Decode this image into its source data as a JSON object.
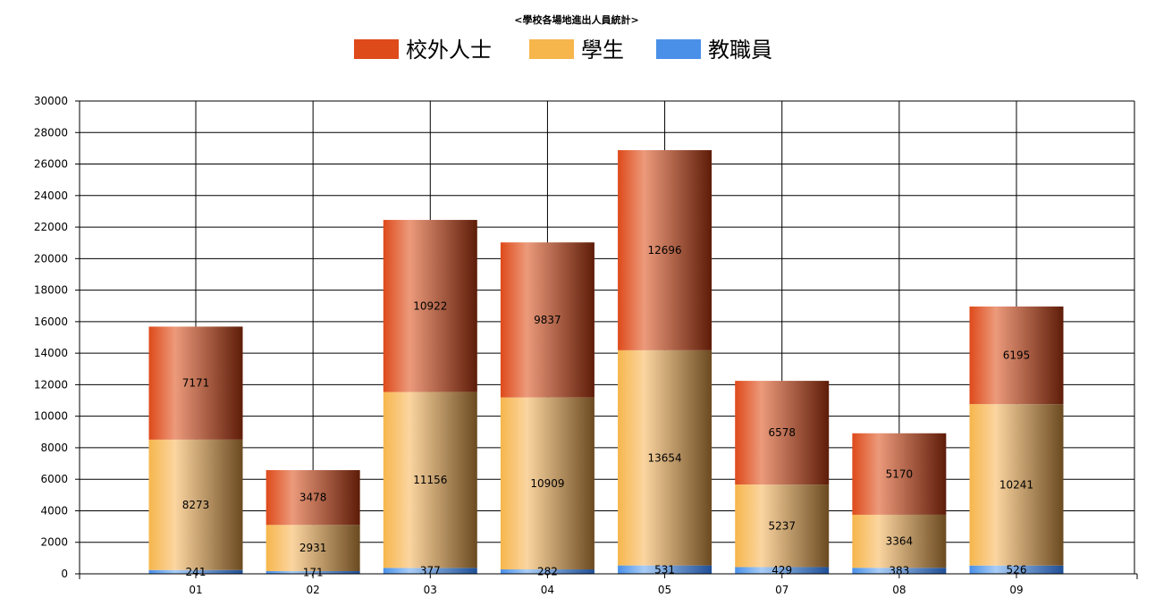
{
  "chart_data": {
    "type": "bar",
    "stacked": true,
    "title": "<學校各場地進出人員統計>",
    "categories": [
      "01",
      "02",
      "03",
      "04",
      "05",
      "07",
      "08",
      "09"
    ],
    "series": [
      {
        "name": "教職員",
        "values": [
          241,
          171,
          377,
          282,
          531,
          429,
          383,
          526
        ],
        "color": "#4a90e8",
        "color_dark": "#1f4f96",
        "color_light": "#a9cdf6"
      },
      {
        "name": "學生",
        "values": [
          8273,
          2931,
          11156,
          10909,
          13654,
          5237,
          3364,
          10241
        ],
        "color": "#f6b64c",
        "color_dark": "#6b4a21",
        "color_light": "#fbd5a0"
      },
      {
        "name": "校外人士",
        "values": [
          7171,
          3478,
          10922,
          9837,
          12696,
          6578,
          5170,
          6195
        ],
        "color": "#de4a1a",
        "color_dark": "#5e1c08",
        "color_light": "#ec9a7b"
      }
    ],
    "legend_order": [
      "校外人士",
      "學生",
      "教職員"
    ],
    "legend_position": "top-center",
    "ylim": [
      0,
      30000
    ],
    "yticks": [
      0,
      2000,
      4000,
      6000,
      8000,
      10000,
      12000,
      14000,
      16000,
      18000,
      20000,
      22000,
      24000,
      26000,
      28000,
      30000
    ],
    "grid": true,
    "xlabel": "",
    "ylabel": ""
  }
}
